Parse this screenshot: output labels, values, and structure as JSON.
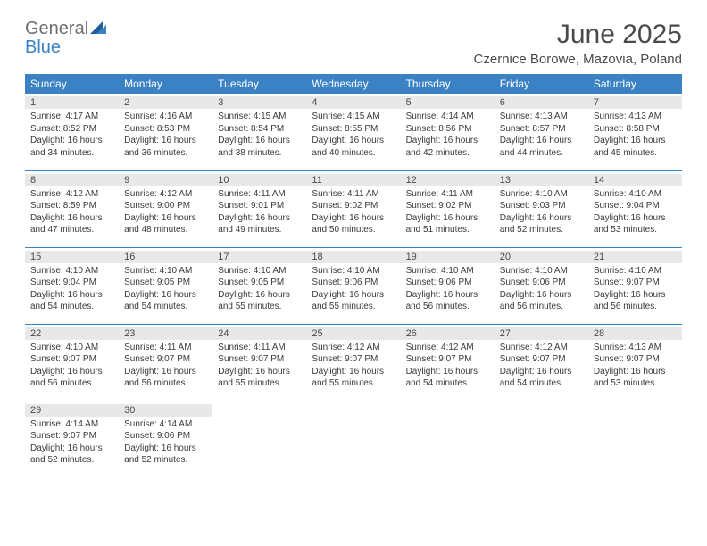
{
  "brand": {
    "word1": "General",
    "word2": "Blue"
  },
  "title": "June 2025",
  "location": "Czernice Borowe, Mazovia, Poland",
  "colors": {
    "header_bg": "#3b82c4",
    "header_text": "#ffffff",
    "text": "#3a3a3a",
    "title_text": "#4a4a4a",
    "daynum_bg": "#e8e8e8",
    "border": "#3b82c4",
    "logo_gray": "#6d6d6d",
    "logo_blue": "#3b82c4"
  },
  "fonts": {
    "title_size_pt": 22,
    "location_size_pt": 11,
    "dayhead_size_pt": 9,
    "daynum_size_pt": 8,
    "info_size_pt": 7.5
  },
  "day_headers": [
    "Sunday",
    "Monday",
    "Tuesday",
    "Wednesday",
    "Thursday",
    "Friday",
    "Saturday"
  ],
  "weeks": [
    [
      {
        "n": "1",
        "sr": "Sunrise: 4:17 AM",
        "ss": "Sunset: 8:52 PM",
        "d1": "Daylight: 16 hours",
        "d2": "and 34 minutes."
      },
      {
        "n": "2",
        "sr": "Sunrise: 4:16 AM",
        "ss": "Sunset: 8:53 PM",
        "d1": "Daylight: 16 hours",
        "d2": "and 36 minutes."
      },
      {
        "n": "3",
        "sr": "Sunrise: 4:15 AM",
        "ss": "Sunset: 8:54 PM",
        "d1": "Daylight: 16 hours",
        "d2": "and 38 minutes."
      },
      {
        "n": "4",
        "sr": "Sunrise: 4:15 AM",
        "ss": "Sunset: 8:55 PM",
        "d1": "Daylight: 16 hours",
        "d2": "and 40 minutes."
      },
      {
        "n": "5",
        "sr": "Sunrise: 4:14 AM",
        "ss": "Sunset: 8:56 PM",
        "d1": "Daylight: 16 hours",
        "d2": "and 42 minutes."
      },
      {
        "n": "6",
        "sr": "Sunrise: 4:13 AM",
        "ss": "Sunset: 8:57 PM",
        "d1": "Daylight: 16 hours",
        "d2": "and 44 minutes."
      },
      {
        "n": "7",
        "sr": "Sunrise: 4:13 AM",
        "ss": "Sunset: 8:58 PM",
        "d1": "Daylight: 16 hours",
        "d2": "and 45 minutes."
      }
    ],
    [
      {
        "n": "8",
        "sr": "Sunrise: 4:12 AM",
        "ss": "Sunset: 8:59 PM",
        "d1": "Daylight: 16 hours",
        "d2": "and 47 minutes."
      },
      {
        "n": "9",
        "sr": "Sunrise: 4:12 AM",
        "ss": "Sunset: 9:00 PM",
        "d1": "Daylight: 16 hours",
        "d2": "and 48 minutes."
      },
      {
        "n": "10",
        "sr": "Sunrise: 4:11 AM",
        "ss": "Sunset: 9:01 PM",
        "d1": "Daylight: 16 hours",
        "d2": "and 49 minutes."
      },
      {
        "n": "11",
        "sr": "Sunrise: 4:11 AM",
        "ss": "Sunset: 9:02 PM",
        "d1": "Daylight: 16 hours",
        "d2": "and 50 minutes."
      },
      {
        "n": "12",
        "sr": "Sunrise: 4:11 AM",
        "ss": "Sunset: 9:02 PM",
        "d1": "Daylight: 16 hours",
        "d2": "and 51 minutes."
      },
      {
        "n": "13",
        "sr": "Sunrise: 4:10 AM",
        "ss": "Sunset: 9:03 PM",
        "d1": "Daylight: 16 hours",
        "d2": "and 52 minutes."
      },
      {
        "n": "14",
        "sr": "Sunrise: 4:10 AM",
        "ss": "Sunset: 9:04 PM",
        "d1": "Daylight: 16 hours",
        "d2": "and 53 minutes."
      }
    ],
    [
      {
        "n": "15",
        "sr": "Sunrise: 4:10 AM",
        "ss": "Sunset: 9:04 PM",
        "d1": "Daylight: 16 hours",
        "d2": "and 54 minutes."
      },
      {
        "n": "16",
        "sr": "Sunrise: 4:10 AM",
        "ss": "Sunset: 9:05 PM",
        "d1": "Daylight: 16 hours",
        "d2": "and 54 minutes."
      },
      {
        "n": "17",
        "sr": "Sunrise: 4:10 AM",
        "ss": "Sunset: 9:05 PM",
        "d1": "Daylight: 16 hours",
        "d2": "and 55 minutes."
      },
      {
        "n": "18",
        "sr": "Sunrise: 4:10 AM",
        "ss": "Sunset: 9:06 PM",
        "d1": "Daylight: 16 hours",
        "d2": "and 55 minutes."
      },
      {
        "n": "19",
        "sr": "Sunrise: 4:10 AM",
        "ss": "Sunset: 9:06 PM",
        "d1": "Daylight: 16 hours",
        "d2": "and 56 minutes."
      },
      {
        "n": "20",
        "sr": "Sunrise: 4:10 AM",
        "ss": "Sunset: 9:06 PM",
        "d1": "Daylight: 16 hours",
        "d2": "and 56 minutes."
      },
      {
        "n": "21",
        "sr": "Sunrise: 4:10 AM",
        "ss": "Sunset: 9:07 PM",
        "d1": "Daylight: 16 hours",
        "d2": "and 56 minutes."
      }
    ],
    [
      {
        "n": "22",
        "sr": "Sunrise: 4:10 AM",
        "ss": "Sunset: 9:07 PM",
        "d1": "Daylight: 16 hours",
        "d2": "and 56 minutes."
      },
      {
        "n": "23",
        "sr": "Sunrise: 4:11 AM",
        "ss": "Sunset: 9:07 PM",
        "d1": "Daylight: 16 hours",
        "d2": "and 56 minutes."
      },
      {
        "n": "24",
        "sr": "Sunrise: 4:11 AM",
        "ss": "Sunset: 9:07 PM",
        "d1": "Daylight: 16 hours",
        "d2": "and 55 minutes."
      },
      {
        "n": "25",
        "sr": "Sunrise: 4:12 AM",
        "ss": "Sunset: 9:07 PM",
        "d1": "Daylight: 16 hours",
        "d2": "and 55 minutes."
      },
      {
        "n": "26",
        "sr": "Sunrise: 4:12 AM",
        "ss": "Sunset: 9:07 PM",
        "d1": "Daylight: 16 hours",
        "d2": "and 54 minutes."
      },
      {
        "n": "27",
        "sr": "Sunrise: 4:12 AM",
        "ss": "Sunset: 9:07 PM",
        "d1": "Daylight: 16 hours",
        "d2": "and 54 minutes."
      },
      {
        "n": "28",
        "sr": "Sunrise: 4:13 AM",
        "ss": "Sunset: 9:07 PM",
        "d1": "Daylight: 16 hours",
        "d2": "and 53 minutes."
      }
    ],
    [
      {
        "n": "29",
        "sr": "Sunrise: 4:14 AM",
        "ss": "Sunset: 9:07 PM",
        "d1": "Daylight: 16 hours",
        "d2": "and 52 minutes."
      },
      {
        "n": "30",
        "sr": "Sunrise: 4:14 AM",
        "ss": "Sunset: 9:06 PM",
        "d1": "Daylight: 16 hours",
        "d2": "and 52 minutes."
      },
      null,
      null,
      null,
      null,
      null
    ]
  ]
}
